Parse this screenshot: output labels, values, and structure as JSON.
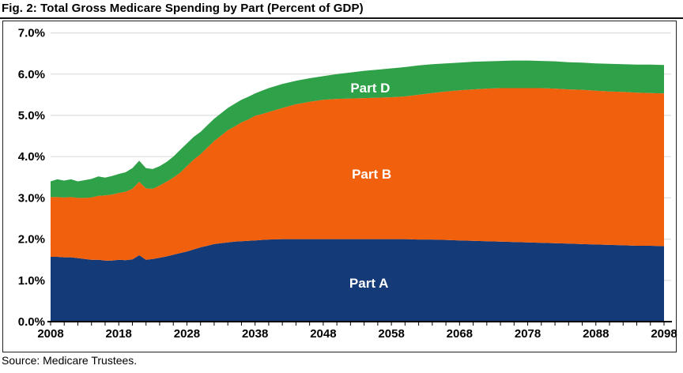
{
  "title": "Fig. 2: Total Gross Medicare Spending by Part (Percent of GDP)",
  "source": "Source: Medicare Trustees.",
  "colors": {
    "part_a": "#153A78",
    "part_b": "#F1600D",
    "part_d": "#2FA148",
    "gridline": "#DCDCDC",
    "axis": "#000000",
    "label_text": "#FFFFFF"
  },
  "chart_data": {
    "type": "area",
    "stacked": true,
    "title": "Fig. 2: Total Gross Medicare Spending by Part (Percent of GDP)",
    "xlabel": "",
    "ylabel": "Percent of GDP",
    "ylim": [
      0,
      7
    ],
    "grid": "horizontal",
    "legend_position": "labels-inside-areas",
    "y_tick_labels": [
      "0.0%",
      "1.0%",
      "2.0%",
      "3.0%",
      "4.0%",
      "5.0%",
      "6.0%",
      "7.0%"
    ],
    "x_tick_labels": [
      "2008",
      "2018",
      "2028",
      "2038",
      "2048",
      "2058",
      "2068",
      "2078",
      "2088",
      "2098"
    ],
    "x_minor_tick_step_years": 2,
    "x_range": [
      2008,
      2098
    ],
    "years": [
      2008,
      2009,
      2010,
      2011,
      2012,
      2013,
      2014,
      2015,
      2016,
      2017,
      2018,
      2019,
      2020,
      2021,
      2022,
      2023,
      2024,
      2025,
      2026,
      2027,
      2028,
      2029,
      2030,
      2031,
      2032,
      2033,
      2034,
      2035,
      2036,
      2037,
      2038,
      2039,
      2040,
      2042,
      2044,
      2046,
      2048,
      2050,
      2052,
      2054,
      2056,
      2058,
      2060,
      2062,
      2064,
      2066,
      2068,
      2070,
      2072,
      2074,
      2076,
      2078,
      2080,
      2082,
      2084,
      2086,
      2088,
      2090,
      2092,
      2094,
      2096,
      2098
    ],
    "series": [
      {
        "name": "Part A",
        "color_key": "part_a",
        "values": [
          1.57,
          1.57,
          1.56,
          1.56,
          1.54,
          1.52,
          1.5,
          1.5,
          1.48,
          1.48,
          1.5,
          1.49,
          1.51,
          1.61,
          1.5,
          1.52,
          1.55,
          1.58,
          1.62,
          1.66,
          1.7,
          1.75,
          1.8,
          1.84,
          1.88,
          1.9,
          1.92,
          1.94,
          1.95,
          1.96,
          1.97,
          1.98,
          1.99,
          2.0,
          2.0,
          2.0,
          2.0,
          2.0,
          2.0,
          2.0,
          2.0,
          2.0,
          2.0,
          1.99,
          1.99,
          1.98,
          1.97,
          1.96,
          1.95,
          1.94,
          1.93,
          1.92,
          1.91,
          1.9,
          1.89,
          1.88,
          1.87,
          1.86,
          1.85,
          1.84,
          1.84,
          1.83
        ]
      },
      {
        "name": "Part B",
        "color_key": "part_b",
        "values": [
          1.45,
          1.45,
          1.45,
          1.46,
          1.46,
          1.48,
          1.51,
          1.55,
          1.58,
          1.6,
          1.62,
          1.66,
          1.71,
          1.78,
          1.73,
          1.7,
          1.75,
          1.81,
          1.87,
          1.95,
          2.07,
          2.18,
          2.26,
          2.38,
          2.5,
          2.61,
          2.72,
          2.79,
          2.88,
          2.94,
          3.02,
          3.05,
          3.09,
          3.18,
          3.27,
          3.33,
          3.38,
          3.4,
          3.41,
          3.42,
          3.43,
          3.44,
          3.46,
          3.51,
          3.55,
          3.6,
          3.64,
          3.67,
          3.7,
          3.72,
          3.73,
          3.74,
          3.75,
          3.75,
          3.74,
          3.74,
          3.73,
          3.72,
          3.72,
          3.71,
          3.7,
          3.7
        ]
      },
      {
        "name": "Part D",
        "color_key": "part_d",
        "values": [
          0.38,
          0.43,
          0.41,
          0.43,
          0.4,
          0.43,
          0.45,
          0.47,
          0.43,
          0.45,
          0.46,
          0.47,
          0.5,
          0.51,
          0.49,
          0.48,
          0.47,
          0.48,
          0.51,
          0.55,
          0.55,
          0.55,
          0.54,
          0.54,
          0.54,
          0.54,
          0.54,
          0.55,
          0.55,
          0.55,
          0.54,
          0.57,
          0.58,
          0.58,
          0.57,
          0.57,
          0.57,
          0.6,
          0.63,
          0.66,
          0.68,
          0.7,
          0.71,
          0.71,
          0.7,
          0.68,
          0.67,
          0.67,
          0.66,
          0.66,
          0.67,
          0.67,
          0.66,
          0.66,
          0.66,
          0.66,
          0.66,
          0.67,
          0.67,
          0.68,
          0.69,
          0.69
        ]
      }
    ],
    "series_labels": [
      {
        "text": "Part A",
        "x_year": 2054.7,
        "y_value": 0.94
      },
      {
        "text": "Part B",
        "x_year": 2055.1,
        "y_value": 3.58
      },
      {
        "text": "Part D",
        "x_year": 2054.9,
        "y_value": 5.67
      }
    ]
  }
}
